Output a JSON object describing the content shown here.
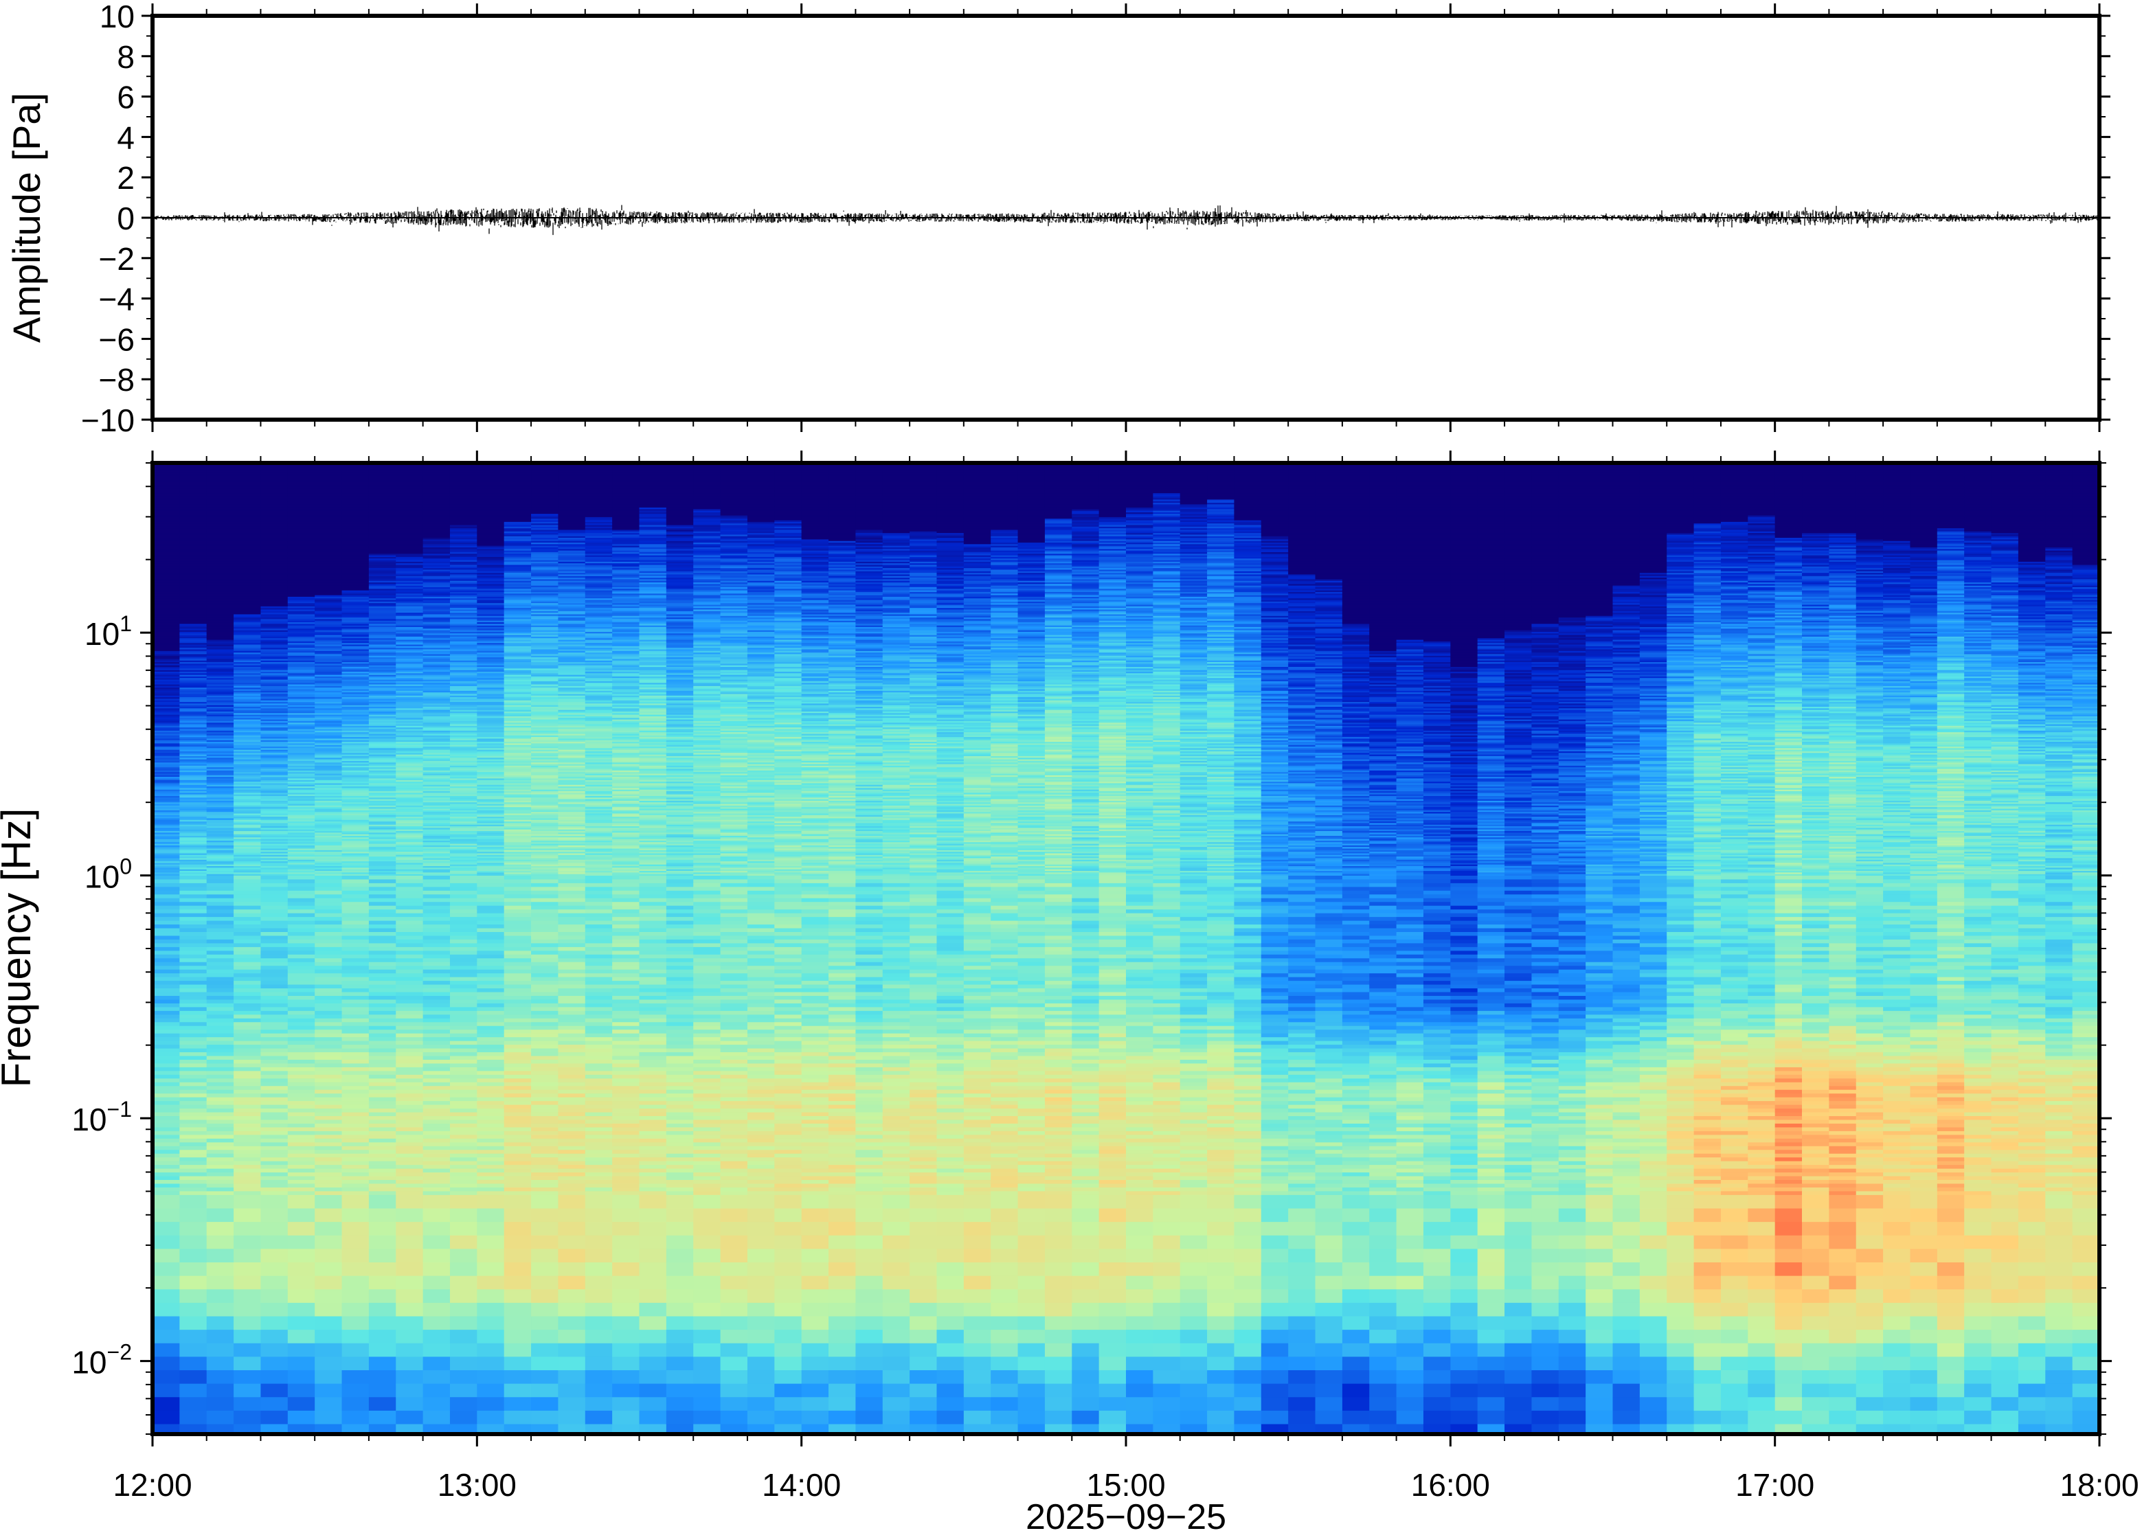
{
  "chart_data": [
    {
      "type": "line",
      "ylabel": "Amplitude [Pa]",
      "ylim": [
        -10,
        10
      ],
      "yticks": [
        "10",
        "8",
        "6",
        "4",
        "2",
        "0",
        "−2",
        "−4",
        "−6",
        "−8",
        "−10"
      ],
      "ytick_values": [
        10,
        8,
        6,
        4,
        2,
        0,
        -2,
        -4,
        -6,
        -8,
        -10
      ],
      "xlim": [
        "12:00",
        "18:00"
      ],
      "grid": false,
      "series": [
        {
          "color": "#000000",
          "x_hours": [
            12.0,
            12.5,
            12.8,
            13.0,
            13.2,
            13.3,
            13.5,
            14.0,
            14.5,
            15.0,
            15.25,
            15.5,
            16.0,
            16.5,
            16.9,
            17.1,
            17.5,
            18.0
          ],
          "envelope_pa": [
            0.12,
            0.2,
            0.35,
            0.45,
            0.5,
            0.55,
            0.3,
            0.25,
            0.2,
            0.3,
            0.4,
            0.18,
            0.12,
            0.15,
            0.3,
            0.4,
            0.2,
            0.15
          ]
        }
      ]
    },
    {
      "type": "heatmap",
      "ylabel": "Frequency [Hz]",
      "xlabel": "2025−09−25",
      "yscale": "log",
      "ylim": [
        0.005,
        50
      ],
      "yticks": [
        {
          "value": 10,
          "base": "10",
          "exp": "1"
        },
        {
          "value": 1,
          "base": "10",
          "exp": "0"
        },
        {
          "value": 0.1,
          "base": "10",
          "exp": "−1"
        },
        {
          "value": 0.01,
          "base": "10",
          "exp": "−2"
        }
      ],
      "xticks": [
        "12:00",
        "13:00",
        "14:00",
        "15:00",
        "16:00",
        "17:00",
        "18:00"
      ],
      "xtick_hours": [
        12,
        13,
        14,
        15,
        16,
        17,
        18
      ],
      "colormap": [
        "#0d0078",
        "#0028d2",
        "#1e96ff",
        "#5ae6e6",
        "#c8f5a0",
        "#ffd278",
        "#ff6440"
      ],
      "time_hours": [
        12.0,
        12.5,
        13.0,
        13.5,
        14.0,
        14.5,
        15.0,
        15.25,
        15.5,
        15.75,
        16.0,
        16.25,
        16.5,
        16.75,
        17.0,
        17.5,
        18.0
      ],
      "band_top_hz": [
        8,
        15,
        25,
        30,
        28,
        25,
        30,
        40,
        20,
        10,
        8,
        10,
        12,
        25,
        28,
        25,
        20
      ],
      "midband_level": [
        0.45,
        0.5,
        0.55,
        0.55,
        0.55,
        0.55,
        0.55,
        0.5,
        0.35,
        0.3,
        0.25,
        0.3,
        0.35,
        0.5,
        0.55,
        0.55,
        0.5
      ],
      "lowband_level": [
        0.6,
        0.65,
        0.72,
        0.7,
        0.72,
        0.72,
        0.72,
        0.7,
        0.6,
        0.58,
        0.58,
        0.6,
        0.65,
        0.8,
        0.88,
        0.82,
        0.75
      ]
    }
  ]
}
